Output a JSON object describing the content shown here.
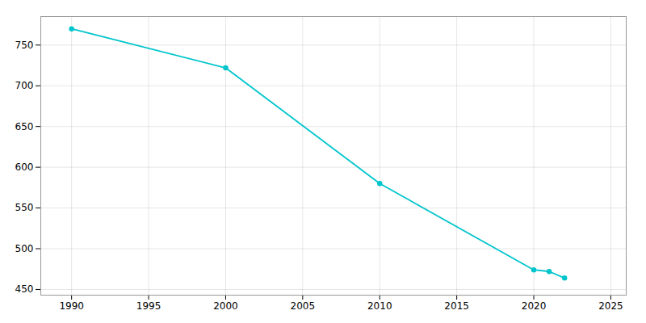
{
  "chart_data": {
    "type": "line",
    "x": [
      1990,
      2000,
      2010,
      2020,
      2021,
      2022
    ],
    "values": [
      770,
      722,
      580,
      474,
      472,
      464
    ],
    "color": "#00c5cd",
    "marker": "circle",
    "xlim": [
      1988,
      2026
    ],
    "ylim": [
      443,
      785
    ],
    "xticks": [
      1990,
      1995,
      2000,
      2005,
      2010,
      2015,
      2020,
      2025
    ],
    "yticks": [
      450,
      500,
      550,
      600,
      650,
      700,
      750
    ],
    "grid": true
  }
}
